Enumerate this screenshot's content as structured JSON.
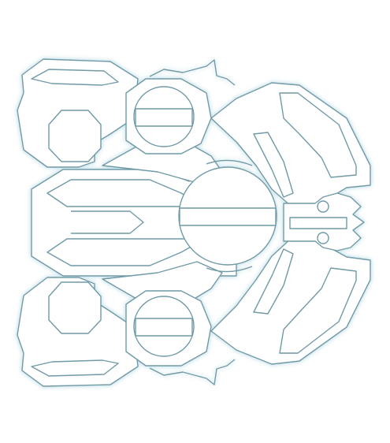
{
  "figure": {
    "style": "wireframe-outline",
    "stroke_color": "#6f9aa6",
    "glow_color": "#cfe6ee",
    "fill_color": "#ffffff",
    "background_color": "#ffffff"
  },
  "parts": {
    "shapes": [
      "upper-left-wing",
      "upper-left-hex-panel",
      "upper-left-pod",
      "upper-sphere",
      "central-sphere",
      "lower-sphere",
      "central-spine",
      "right-armor-plate-upper",
      "right-armor-plate-lower",
      "right-coupler",
      "lower-left-hex-panel",
      "lower-left-pod",
      "lower-left-wing"
    ]
  }
}
